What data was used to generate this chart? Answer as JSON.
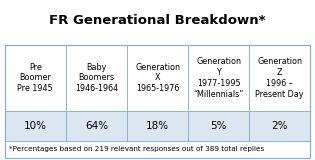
{
  "title": "FR Generational Breakdown*",
  "col_headers": [
    "Pre\nBoomer\nPre 1945",
    "Baby\nBoomers\n1946-1964",
    "Generation\nX\n1965-1976",
    "Generation\nY\n1977-1995\n“Millennials”",
    "Generation\nZ\n1996 –\nPresent Day"
  ],
  "values": [
    "10%",
    "64%",
    "18%",
    "5%",
    "2%"
  ],
  "footnote": "*Percentages based on 219 relevant responses out of 389 total replies",
  "header_bg": "#ffffff",
  "value_bg": "#dce6f1",
  "border_color": "#7aaddb",
  "title_fontsize": 9.5,
  "header_fontsize": 5.8,
  "value_fontsize": 7.5,
  "footnote_fontsize": 5.2,
  "bg_color": "#ffffff"
}
